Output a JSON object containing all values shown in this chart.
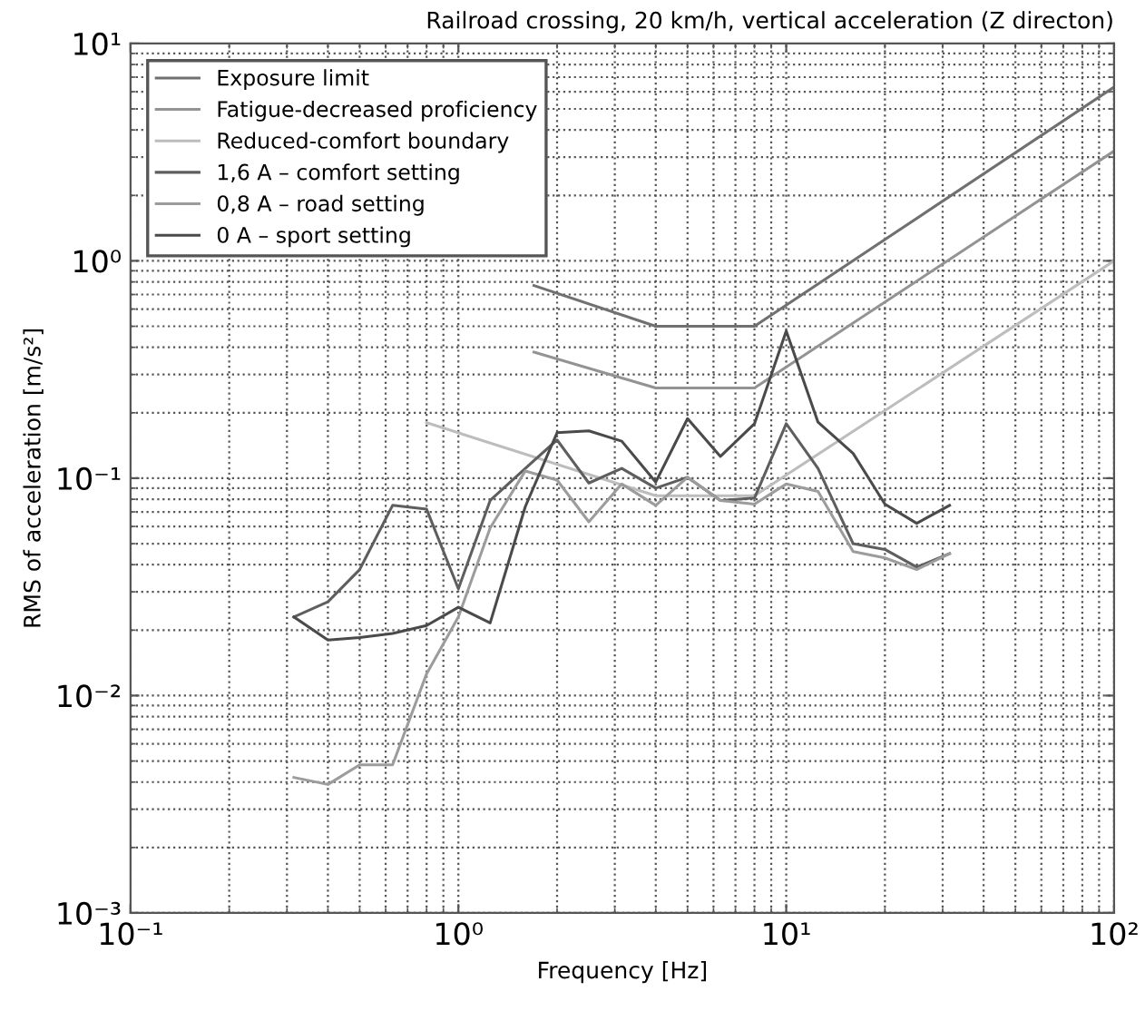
{
  "chart_data": {
    "type": "line",
    "title": "Railroad crossing, 20 km/h, vertical acceleration (Z directon)",
    "xlabel": "Frequency [Hz]",
    "ylabel": "RMS of acceleration [m/s²]",
    "log": "xy",
    "grid": true,
    "legend": "top left",
    "line_style": "solid",
    "marker": "none",
    "xlim": [
      0.1,
      100
    ],
    "ylim": [
      0.001,
      10
    ],
    "xticks": [
      {
        "value": 0.1,
        "label": "10⁻¹"
      },
      {
        "value": 1,
        "label": "10⁰"
      },
      {
        "value": 10,
        "label": "10¹"
      },
      {
        "value": 100,
        "label": "10²"
      }
    ],
    "yticks": [
      {
        "value": 0.001,
        "label": "10⁻³"
      },
      {
        "value": 0.01,
        "label": "10⁻²"
      },
      {
        "value": 0.1,
        "label": "10⁻¹"
      },
      {
        "value": 1,
        "label": "10⁰"
      },
      {
        "value": 10,
        "label": "10¹"
      }
    ],
    "series": [
      {
        "name": "Exposure limit",
        "color": "#707070",
        "x": [
          1.7,
          4,
          8,
          100
        ],
        "values": [
          0.77,
          0.5,
          0.5,
          6.3
        ]
      },
      {
        "name": "Fatigue-decreased proficiency",
        "color": "#939393",
        "x": [
          1.7,
          4,
          8,
          100
        ],
        "values": [
          0.38,
          0.26,
          0.26,
          3.2
        ]
      },
      {
        "name": "Reduced-comfort boundary",
        "color": "#bdbdbd",
        "x": [
          0.8,
          4,
          8,
          100
        ],
        "values": [
          0.18,
          0.083,
          0.083,
          1.0
        ]
      },
      {
        "name": "1,6 A – comfort setting",
        "color": "#5e5e5e",
        "x": [
          0.315,
          0.4,
          0.5,
          0.63,
          0.8,
          1,
          1.25,
          1.6,
          2,
          2.5,
          3.15,
          4,
          5,
          6.3,
          8,
          10,
          12.5,
          16,
          20,
          25,
          31.5
        ],
        "values": [
          0.023,
          0.027,
          0.038,
          0.075,
          0.072,
          0.031,
          0.079,
          0.111,
          0.15,
          0.095,
          0.111,
          0.09,
          0.101,
          0.079,
          0.081,
          0.178,
          0.111,
          0.05,
          0.047,
          0.039,
          0.045
        ]
      },
      {
        "name": "0,8 A – road setting",
        "color": "#9c9c9c",
        "x": [
          0.315,
          0.4,
          0.5,
          0.63,
          0.8,
          1,
          1.25,
          1.6,
          2,
          2.5,
          3.15,
          4,
          5,
          6.3,
          8,
          10,
          12.5,
          16,
          20,
          25,
          31.5
        ],
        "values": [
          0.0042,
          0.0039,
          0.0048,
          0.0048,
          0.0126,
          0.023,
          0.059,
          0.108,
          0.098,
          0.063,
          0.094,
          0.075,
          0.101,
          0.079,
          0.076,
          0.094,
          0.087,
          0.046,
          0.043,
          0.038,
          0.045
        ]
      },
      {
        "name": "0 A – sport setting",
        "color": "#4a4a4a",
        "x": [
          0.315,
          0.4,
          0.5,
          0.63,
          0.8,
          1,
          1.25,
          1.6,
          2,
          2.5,
          3.15,
          4,
          5,
          6.3,
          8,
          10,
          12.5,
          16,
          20,
          25,
          31.5
        ],
        "values": [
          0.023,
          0.018,
          0.0185,
          0.0193,
          0.021,
          0.0255,
          0.0216,
          0.074,
          0.162,
          0.165,
          0.148,
          0.096,
          0.188,
          0.126,
          0.178,
          0.475,
          0.181,
          0.13,
          0.076,
          0.062,
          0.075
        ]
      }
    ]
  }
}
